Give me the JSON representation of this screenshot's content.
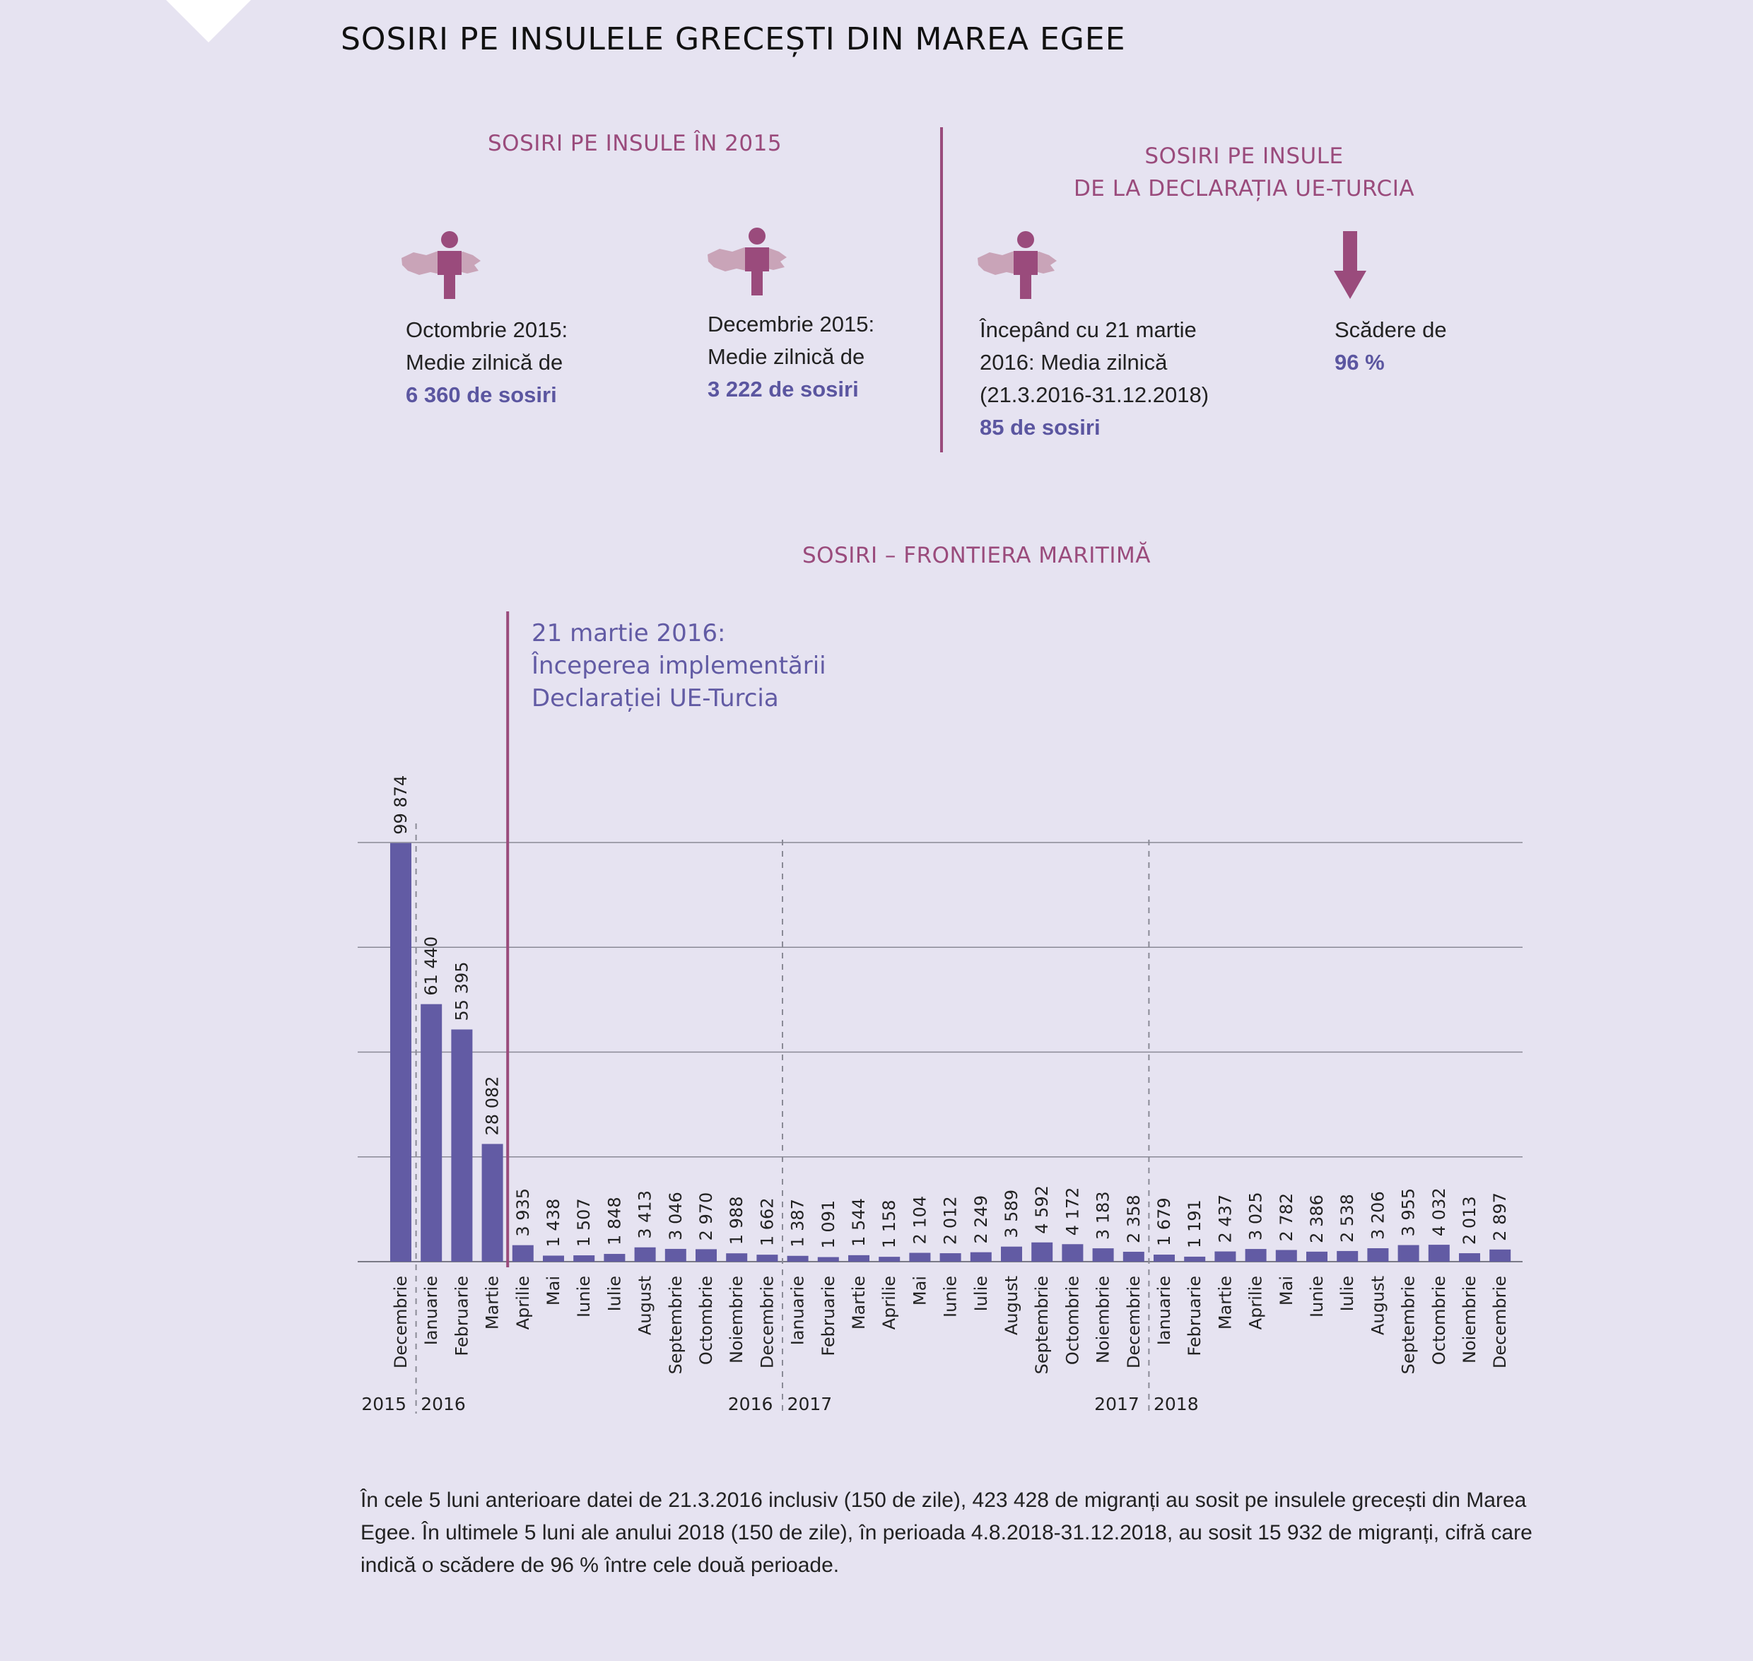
{
  "title": "SOSIRI PE INSULELE GRECEȘTI DIN MAREA EGEE",
  "colors": {
    "background": "#e6e3f1",
    "accent_purple": "#9a4b7c",
    "bar": "#625ba4",
    "highlight": "#5b56a0",
    "map_pink": "#c9a4b8"
  },
  "panel_2015": {
    "title": "SOSIRI PE INSULE ÎN 2015",
    "stats": [
      {
        "icon": "person-on-map-icon",
        "line1": "Octombrie 2015:",
        "line2": "Medie zilnică de",
        "value": "6 360 de sosiri"
      },
      {
        "icon": "person-on-map-icon",
        "line1": "Decembrie 2015:",
        "line2": "Medie zilnică de",
        "value": "3 222 de sosiri"
      }
    ]
  },
  "panel_declaration": {
    "title_line1": "SOSIRI PE INSULE",
    "title_line2": "DE LA DECLARAȚIA UE-TURCIA",
    "stat": {
      "icon": "person-on-map-icon",
      "line1": "Începând cu 21 martie",
      "line2": "2016: Media zilnică",
      "line3": "(21.3.2016-31.12.2018)",
      "value": "85 de sosiri"
    },
    "decrease": {
      "icon": "arrow-down-icon",
      "line1": "Scădere de",
      "value": "96 %"
    }
  },
  "chart_data": {
    "type": "bar",
    "title": "SOSIRI – FRONTIERA MARITIMĂ",
    "annotation": {
      "line1": "21 martie 2016:",
      "line2": "Începerea implementării",
      "line3": "Declarației UE-Turcia",
      "after_category_index": 3
    },
    "ylim": [
      0,
      100000
    ],
    "gridlines": [
      25000,
      50000,
      75000,
      100000
    ],
    "categories": [
      "Decembrie",
      "Ianuarie",
      "Februarie",
      "Martie",
      "Aprilie",
      "Mai",
      "Iunie",
      "Iulie",
      "August",
      "Septembrie",
      "Octombrie",
      "Noiembrie",
      "Decembrie",
      "Ianuarie",
      "Februarie",
      "Martie",
      "Aprilie",
      "Mai",
      "Iunie",
      "Iulie",
      "August",
      "Septembrie",
      "Octombrie",
      "Noiembrie",
      "Decembrie",
      "Ianuarie",
      "Februarie",
      "Martie",
      "Aprilie",
      "Mai",
      "Iunie",
      "Iulie",
      "August",
      "Septembrie",
      "Octombrie",
      "Noiembrie",
      "Decembrie"
    ],
    "values": [
      99874,
      61440,
      55395,
      28082,
      3935,
      1438,
      1507,
      1848,
      3413,
      3046,
      2970,
      1988,
      1662,
      1387,
      1091,
      1544,
      1158,
      2104,
      2012,
      2249,
      3589,
      4592,
      4172,
      3183,
      2358,
      1679,
      1191,
      2437,
      3025,
      2782,
      2386,
      2538,
      3206,
      3955,
      4032,
      2013,
      2897
    ],
    "value_labels": [
      "99 874",
      "61 440",
      "55 395",
      "28 082",
      "3 935",
      "1 438",
      "1 507",
      "1 848",
      "3 413",
      "3 046",
      "2 970",
      "1 988",
      "1 662",
      "1 387",
      "1 091",
      "1 544",
      "1 158",
      "2 104",
      "2 012",
      "2 249",
      "3 589",
      "4 592",
      "4 172",
      "3 183",
      "2 358",
      "1 679",
      "1 191",
      "2 437",
      "3 025",
      "2 782",
      "2 386",
      "2 538",
      "3 206",
      "3 955",
      "4 032",
      "2 013",
      "2 897"
    ],
    "year_separators_after_index": [
      0,
      12,
      24
    ],
    "year_labels": [
      {
        "text": "2015",
        "align_end_of": 0
      },
      {
        "text": "2016",
        "align_start_of": 1
      },
      {
        "text": "2016",
        "align_end_of": 12
      },
      {
        "text": "2017",
        "align_start_of": 13
      },
      {
        "text": "2017",
        "align_end_of": 24
      },
      {
        "text": "2018",
        "align_start_of": 25
      }
    ]
  },
  "footnote": "În cele 5 luni anterioare datei de 21.3.2016 inclusiv (150 de zile), 423 428 de migranți au sosit pe insulele grecești din Marea Egee. În ultimele 5 luni ale anului 2018 (150 de zile), în perioada 4.8.2018-31.12.2018, au sosit 15 932 de migranți, cifră care indică o scădere de 96 % între cele două perioade."
}
